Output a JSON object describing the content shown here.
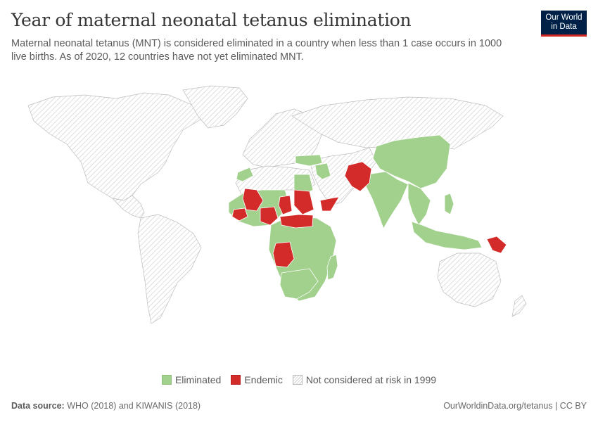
{
  "header": {
    "title": "Year of maternal neonatal tetanus elimination",
    "subtitle": "Maternal neonatal tetanus (MNT) is considered eliminated in a country when less than 1 case occurs in 1000 live births. As of 2020, 12 countries have not yet eliminated MNT."
  },
  "logo": {
    "line1": "Our World",
    "line2": "in Data"
  },
  "colors": {
    "eliminated": "#a2d18e",
    "endemic": "#d32a2a",
    "not_at_risk_hatch": "#cfcfcf"
  },
  "legend": {
    "items": [
      {
        "label": "Eliminated",
        "swatch": "eliminated"
      },
      {
        "label": "Endemic",
        "swatch": "endemic"
      },
      {
        "label": "Not considered at risk in 1999",
        "swatch": "hatch"
      }
    ]
  },
  "footer": {
    "source_label": "Data source:",
    "source_text": "WHO (2018) and KIWANIS (2018)",
    "credit": "OurWorldinData.org/tetanus | CC BY"
  }
}
